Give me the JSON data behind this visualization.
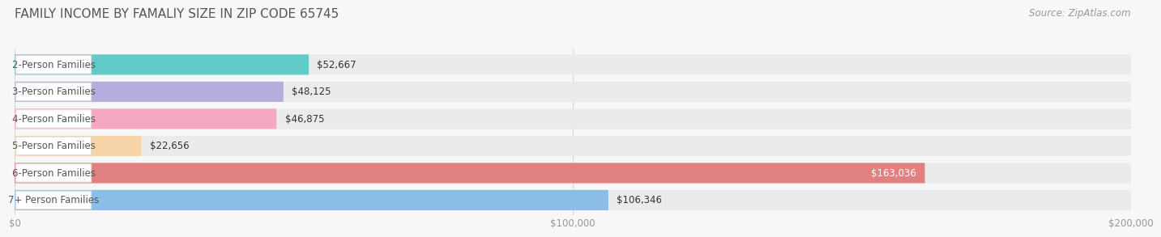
{
  "title": "FAMILY INCOME BY FAMALIY SIZE IN ZIP CODE 65745",
  "source": "Source: ZipAtlas.com",
  "categories": [
    "2-Person Families",
    "3-Person Families",
    "4-Person Families",
    "5-Person Families",
    "6-Person Families",
    "7+ Person Families"
  ],
  "values": [
    52667,
    48125,
    46875,
    22656,
    163036,
    106346
  ],
  "bar_colors": [
    "#62cac8",
    "#b3aedd",
    "#f5a8c0",
    "#f7d4a8",
    "#e08080",
    "#8abde8"
  ],
  "label_bg_colors": [
    "#daf4f3",
    "#e8e5f5",
    "#fce0ea",
    "#fdebd4",
    "#f5caca",
    "#d0e8f8"
  ],
  "label_colors": [
    "#333333",
    "#333333",
    "#333333",
    "#333333",
    "#ffffff",
    "#333333"
  ],
  "value_labels": [
    "$52,667",
    "$48,125",
    "$46,875",
    "$22,656",
    "$163,036",
    "$106,346"
  ],
  "xlim": [
    0,
    200000
  ],
  "xticks": [
    0,
    100000,
    200000
  ],
  "xtick_labels": [
    "$0",
    "$100,000",
    "$200,000"
  ],
  "background_color": "#f7f7f7",
  "bar_bg_color": "#ebebeb",
  "title_fontsize": 11,
  "source_fontsize": 8.5,
  "label_fontsize": 8.5,
  "value_fontsize": 8.5
}
